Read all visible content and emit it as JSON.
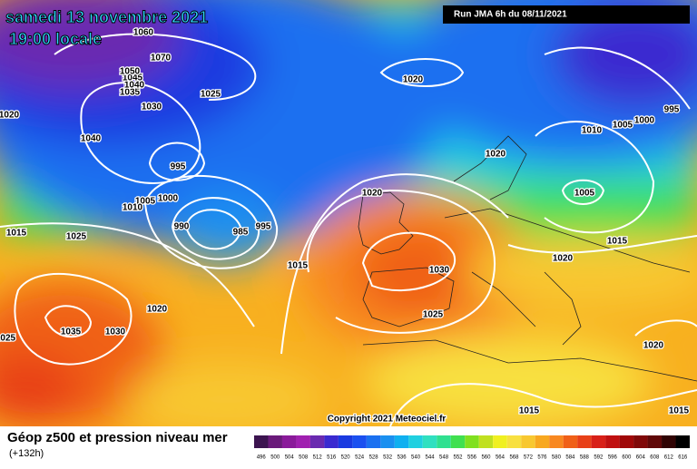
{
  "header": {
    "date": "samedi 13 novembre 2021",
    "time": "19:00 locale",
    "run": "Run JMA 6h du 08/11/2021"
  },
  "copyright": "Copyright 2021 Meteociel.fr",
  "legend": {
    "title": "Géop z500 et pression niveau mer",
    "subtitle": "(+132h)",
    "scale_labels": [
      496,
      500,
      504,
      508,
      512,
      516,
      520,
      524,
      528,
      532,
      536,
      540,
      544,
      548,
      552,
      556,
      560,
      564,
      568,
      572,
      576,
      580,
      584,
      588,
      592,
      596,
      600,
      604,
      608,
      612,
      616
    ],
    "scale_colors": [
      "#3c1450",
      "#6a1a7a",
      "#8a1a9a",
      "#a020b0",
      "#6a2ab0",
      "#3a2ad0",
      "#1a3ae0",
      "#1a50f0",
      "#1a70f0",
      "#1a90f0",
      "#10b0f0",
      "#20d0e0",
      "#30e0c0",
      "#30e090",
      "#40e050",
      "#80e020",
      "#c0e020",
      "#f0f020",
      "#f8e040",
      "#f8c830",
      "#f8a820",
      "#f88820",
      "#f06018",
      "#e84018",
      "#d82018",
      "#c01010",
      "#a00808",
      "#800808",
      "#600808",
      "#300404",
      "#000000"
    ]
  },
  "isobar_labels": [
    "1020",
    "1025",
    "1030",
    "1035",
    "1040",
    "1045",
    "1050",
    "1070",
    "1060",
    "1040",
    "995",
    "1005",
    "1000",
    "1010",
    "990",
    "985",
    "995",
    "1015",
    "1025",
    "1015",
    "1020",
    "1035",
    "1030",
    "1020",
    "1020",
    "1030",
    "1025",
    "1015",
    "1020",
    "1005",
    "1010",
    "1005",
    "1000",
    "995",
    "1020",
    "1015",
    "1015",
    "1020",
    "1025"
  ]
}
